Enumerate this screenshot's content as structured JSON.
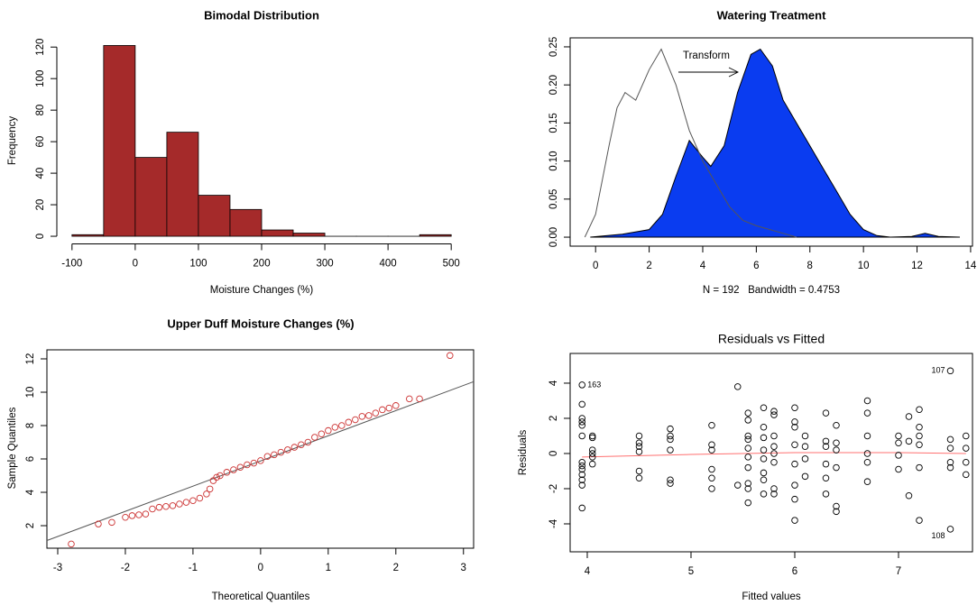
{
  "chart_data": [
    {
      "type": "histogram",
      "title": "Bimodal Distribution",
      "x_label": "Moisture Changes (%)",
      "y_label": "Frequency",
      "bins": [
        -100,
        -50,
        0,
        50,
        100,
        150,
        200,
        250,
        300,
        350,
        400,
        450,
        500
      ],
      "values": [
        1,
        121,
        50,
        66,
        26,
        17,
        4,
        2,
        0,
        0,
        0,
        1
      ],
      "color": "#a52a2a",
      "edge_color": "#000000",
      "xlim": [
        -124,
        524
      ],
      "ylim": [
        -4.84,
        125.84
      ],
      "xticks": [
        -100,
        0,
        100,
        200,
        300,
        400,
        500
      ],
      "yticks": [
        0,
        20,
        40,
        60,
        80,
        100,
        120
      ],
      "frame": false
    },
    {
      "type": "line",
      "title": "Watering Treatment",
      "x_label": "N = 192   Bandwidth = 0.4753",
      "annotation": "Transform",
      "series": [
        {
          "color": "#000000",
          "fill_color": "#0a3cf0",
          "x": [
            -0.2,
            1.0,
            2.0,
            2.5,
            3.0,
            3.5,
            4.0,
            4.3,
            4.8,
            5.3,
            5.8,
            6.15,
            6.6,
            7.0,
            7.5,
            8.0,
            8.5,
            9.0,
            9.5,
            10.0,
            10.5,
            11.0,
            11.8,
            12.3,
            12.8,
            13.6
          ],
          "values": [
            0,
            0.004,
            0.01,
            0.03,
            0.08,
            0.127,
            0.105,
            0.093,
            0.12,
            0.19,
            0.24,
            0.247,
            0.225,
            0.18,
            0.15,
            0.12,
            0.09,
            0.06,
            0.03,
            0.01,
            0.002,
            0,
            0.001,
            0.005,
            0.001,
            0
          ]
        },
        {
          "color": "#555555",
          "x": [
            -0.4,
            0,
            0.5,
            0.8,
            1.1,
            1.5,
            2.0,
            2.45,
            3.0,
            3.5,
            4.0,
            4.5,
            5.0,
            5.5,
            6.0,
            7.0,
            7.5
          ],
          "values": [
            0,
            0.03,
            0.12,
            0.17,
            0.19,
            0.18,
            0.22,
            0.247,
            0.2,
            0.14,
            0.1,
            0.07,
            0.04,
            0.022,
            0.015,
            0.005,
            0
          ]
        }
      ],
      "xlim": [
        -0.95,
        14.07
      ],
      "ylim": [
        -0.0118,
        0.2618
      ],
      "xticks": [
        0,
        2,
        4,
        6,
        8,
        10,
        12,
        14
      ],
      "yticks": [
        {
          "value": 0,
          "label": "0.00"
        },
        0.05,
        {
          "value": 0.1,
          "label": "0.10"
        },
        0.15,
        {
          "value": 0.2,
          "label": "0.20"
        },
        0.25
      ],
      "frame": true
    },
    {
      "type": "scatter",
      "title": "Upper Duff Moisture Changes (%)",
      "x_label": "Theoretical Quantiles",
      "y_label": "Sample Quantiles",
      "x": [
        -2.8,
        -2.4,
        -2.2,
        -2.0,
        -1.9,
        -1.8,
        -1.7,
        -1.6,
        -1.5,
        -1.4,
        -1.3,
        -1.2,
        -1.1,
        -1.0,
        -0.9,
        -0.8,
        -0.75,
        -0.7,
        -0.65,
        -0.6,
        -0.5,
        -0.4,
        -0.3,
        -0.2,
        -0.1,
        0,
        0.1,
        0.2,
        0.3,
        0.4,
        0.5,
        0.6,
        0.7,
        0.8,
        0.9,
        1.0,
        1.1,
        1.2,
        1.3,
        1.4,
        1.5,
        1.6,
        1.7,
        1.8,
        1.9,
        2.0,
        2.2,
        2.35,
        2.8
      ],
      "values": [
        0.9,
        2.1,
        2.2,
        2.5,
        2.6,
        2.65,
        2.7,
        3.0,
        3.1,
        3.15,
        3.2,
        3.3,
        3.4,
        3.5,
        3.65,
        3.9,
        4.2,
        4.7,
        4.9,
        5.0,
        5.2,
        5.35,
        5.5,
        5.65,
        5.75,
        5.9,
        6.15,
        6.25,
        6.4,
        6.55,
        6.7,
        6.85,
        7.0,
        7.3,
        7.5,
        7.7,
        7.9,
        8.0,
        8.2,
        8.35,
        8.55,
        8.6,
        8.75,
        8.95,
        9.05,
        9.2,
        9.6,
        9.6,
        12.2
      ],
      "color": "#cc3333",
      "ref_line": {
        "color": "#555555",
        "x": [
          -3.16,
          3.15
        ],
        "values": [
          1.11,
          10.63
        ]
      },
      "xlim": [
        -3.16,
        3.15
      ],
      "ylim": [
        0.65,
        12.54
      ],
      "xticks": [
        -3,
        -2,
        -1,
        0,
        1,
        2,
        3
      ],
      "yticks": [
        2,
        4,
        6,
        8,
        10,
        12
      ],
      "frame": true
    },
    {
      "type": "scatter",
      "title": "Residuals vs Fitted",
      "x_label": "Fitted values",
      "y_label": "Residuals",
      "x": [
        3.95,
        3.95,
        3.95,
        3.95,
        3.95,
        3.95,
        3.95,
        3.95,
        3.95,
        3.95,
        3.95,
        3.95,
        3.95,
        4.05,
        4.05,
        4.05,
        4.05,
        4.05,
        4.05,
        4.5,
        4.5,
        4.5,
        4.5,
        4.5,
        4.5,
        4.8,
        4.8,
        4.8,
        4.8,
        4.8,
        4.8,
        5.2,
        5.2,
        5.2,
        5.2,
        5.2,
        5.2,
        5.45,
        5.45,
        5.55,
        5.55,
        5.55,
        5.55,
        5.55,
        5.55,
        5.55,
        5.55,
        5.55,
        5.55,
        5.7,
        5.7,
        5.7,
        5.7,
        5.7,
        5.7,
        5.7,
        5.7,
        5.8,
        5.8,
        5.8,
        5.8,
        5.8,
        5.8,
        5.8,
        5.8,
        6.0,
        6.0,
        6.0,
        6.0,
        6.0,
        6.0,
        6.0,
        6.0,
        6.1,
        6.1,
        6.1,
        6.1,
        6.3,
        6.3,
        6.3,
        6.3,
        6.3,
        6.3,
        6.4,
        6.4,
        6.4,
        6.4,
        6.4,
        6.4,
        6.7,
        6.7,
        6.7,
        6.7,
        6.7,
        6.7,
        7.0,
        7.0,
        7.0,
        7.0,
        7.1,
        7.1,
        7.1,
        7.2,
        7.2,
        7.2,
        7.2,
        7.2,
        7.2,
        7.5,
        7.5,
        7.5,
        7.5,
        7.5,
        7.5,
        7.65,
        7.65,
        7.65,
        7.65
      ],
      "values": [
        3.9,
        2.8,
        2.0,
        1.8,
        1.6,
        1.0,
        -0.5,
        -0.7,
        -0.9,
        -1.2,
        -1.5,
        -1.8,
        -3.1,
        1.0,
        0.9,
        0.2,
        0.0,
        -0.2,
        -0.6,
        1.0,
        0.6,
        0.4,
        0.1,
        -1.0,
        -1.4,
        1.4,
        1.0,
        0.8,
        0.2,
        -1.5,
        -1.7,
        1.6,
        0.5,
        0.2,
        -0.9,
        -1.4,
        -2.0,
        3.8,
        -1.8,
        2.3,
        1.9,
        1.0,
        0.8,
        0.3,
        -0.2,
        -0.8,
        -2.8,
        -2.0,
        -1.7,
        2.6,
        1.5,
        0.9,
        0.2,
        -0.3,
        -1.1,
        -1.5,
        -2.3,
        2.4,
        2.2,
        1.0,
        0.4,
        0.0,
        -0.5,
        -2.0,
        -2.3,
        2.6,
        1.8,
        1.5,
        0.5,
        -0.6,
        -1.8,
        -2.6,
        -3.8,
        1.0,
        0.4,
        -0.3,
        -1.3,
        2.3,
        0.7,
        0.4,
        -0.6,
        -1.4,
        -2.3,
        1.6,
        0.6,
        0.2,
        -0.8,
        -3.0,
        -3.3,
        3.0,
        2.3,
        1.0,
        0.0,
        -0.5,
        -1.6,
        1.0,
        0.6,
        -0.1,
        -0.9,
        2.1,
        0.7,
        -2.4,
        2.5,
        1.5,
        1.0,
        0.5,
        -0.8,
        -3.8,
        4.7,
        0.8,
        0.3,
        -0.5,
        -0.8,
        -4.3,
        1.0,
        0.3,
        -0.5,
        -1.2
      ],
      "point_labels": [
        "163",
        null,
        null,
        null,
        null,
        null,
        null,
        null,
        null,
        null,
        null,
        null,
        null,
        null,
        null,
        null,
        null,
        null,
        null,
        null,
        null,
        null,
        null,
        null,
        null,
        null,
        null,
        null,
        null,
        null,
        null,
        null,
        null,
        null,
        null,
        null,
        null,
        null,
        null,
        null,
        null,
        null,
        null,
        null,
        null,
        null,
        null,
        null,
        null,
        null,
        null,
        null,
        null,
        null,
        null,
        null,
        null,
        null,
        null,
        null,
        null,
        null,
        null,
        null,
        null,
        null,
        null,
        null,
        null,
        null,
        null,
        null,
        null,
        null,
        null,
        null,
        null,
        null,
        null,
        null,
        null,
        null,
        null,
        null,
        null,
        null,
        null,
        null,
        null,
        null,
        null,
        null,
        null,
        null,
        null,
        null,
        null,
        null,
        null,
        null,
        null,
        null,
        null,
        null,
        null,
        null,
        null,
        null,
        "107",
        null,
        null,
        null,
        null,
        "108",
        null,
        null,
        null,
        null
      ],
      "color": "#000000",
      "ref_line": {
        "color": "#ff7070",
        "x": [
          3.95,
          5.0,
          6.0,
          7.0,
          7.65
        ],
        "values": [
          -0.2,
          -0.05,
          0.05,
          0.05,
          0.0
        ]
      },
      "xlim": [
        3.835,
        7.713
      ],
      "ylim": [
        -5.59,
        5.69
      ],
      "xticks": [
        4,
        5,
        6,
        7
      ],
      "yticks": [
        -4,
        -2,
        0,
        2,
        4
      ],
      "frame": true
    }
  ]
}
